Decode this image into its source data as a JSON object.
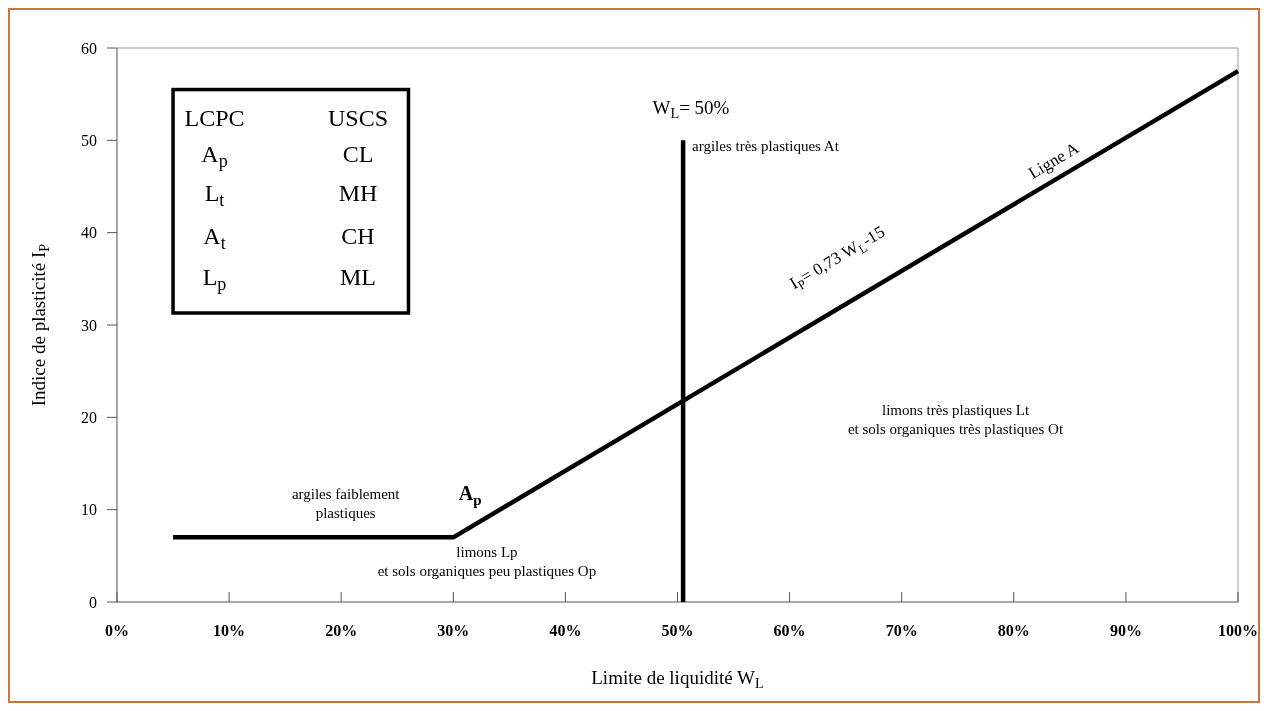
{
  "chart_data": {
    "type": "line",
    "xlabel": "Limite de liquidité W$_{L}$",
    "ylabel": "Indice de plasticité I$_{P}$",
    "xlim": [
      0,
      100
    ],
    "ylim": [
      0,
      60
    ],
    "xticks": [
      {
        "value": 0,
        "label": "0%"
      },
      {
        "value": 10,
        "label": "10%"
      },
      {
        "value": 20,
        "label": "20%"
      },
      {
        "value": 30,
        "label": "30%"
      },
      {
        "value": 40,
        "label": "40%"
      },
      {
        "value": 50,
        "label": "50%"
      },
      {
        "value": 60,
        "label": "60%"
      },
      {
        "value": 70,
        "label": "70%"
      },
      {
        "value": 80,
        "label": "80%"
      },
      {
        "value": 90,
        "label": "90%"
      },
      {
        "value": 100,
        "label": "100%"
      }
    ],
    "yticks": [
      0,
      10,
      20,
      30,
      40,
      50,
      60
    ],
    "series": [
      {
        "color": "#000000",
        "x": [
          5,
          30,
          100
        ],
        "values": [
          7,
          7,
          57.5
        ]
      },
      {
        "color": "#000000",
        "x": [
          50.5,
          50.5
        ],
        "values": [
          0,
          50
        ]
      }
    ],
    "annotations": [
      "LCPC",
      "USCS",
      "A$_{p}$",
      "CL",
      "L$_{t}$",
      "MH",
      "A$_{t}$",
      "CH",
      "L$_{p}$",
      "ML",
      "W$_{L}$= 50%",
      "argiles très plastiques At",
      "I$_{P}$= 0,73 W$_{L}$-15",
      "Ligne A",
      "limons très plastiques Lt\net sols organiques très plastiques Ot",
      "argiles faiblement\nplastiques",
      "A$_{p}$",
      "limons Lp\net sols organiques peu plastiques Op"
    ]
  }
}
